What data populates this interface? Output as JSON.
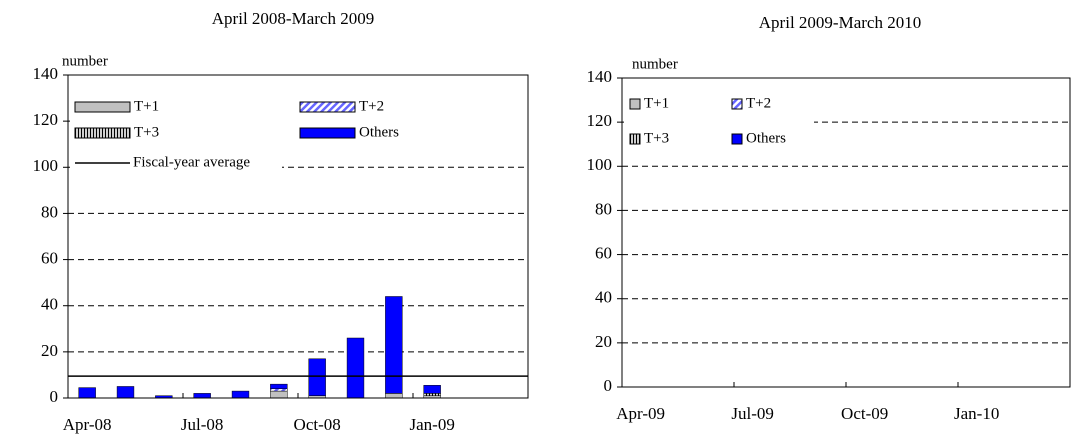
{
  "chart_data": [
    {
      "type": "bar",
      "stacked": true,
      "title": "April 2008-March 2009",
      "y_label": "number",
      "categories": [
        "Apr-08",
        null,
        null,
        "Jul-08",
        null,
        null,
        "Oct-08",
        null,
        null,
        "Jan-09",
        null,
        null
      ],
      "series": [
        {
          "name": "T+1",
          "color": "#c0c0c0",
          "fill_style": "solid",
          "values": [
            0,
            0,
            0,
            0,
            0,
            3,
            1,
            0,
            2,
            1,
            null,
            null
          ]
        },
        {
          "name": "T+2",
          "color": "#6666ff",
          "fill_style": "diagonal",
          "values": [
            0,
            0,
            0,
            0,
            0,
            1,
            0,
            0,
            0,
            0,
            null,
            null
          ]
        },
        {
          "name": "T+3",
          "color": "#808080",
          "fill_style": "vertical",
          "values": [
            0,
            0,
            0,
            0,
            0,
            0,
            0,
            0,
            0,
            1,
            null,
            null
          ]
        },
        {
          "name": "Others",
          "color": "#0000ff",
          "fill_style": "solid",
          "values": [
            4.5,
            5,
            1,
            2,
            3,
            2,
            16,
            26,
            42,
            3.5,
            null,
            null
          ]
        }
      ],
      "average": {
        "name": "Fiscal-year average",
        "value": 9.5
      },
      "ylim": [
        0,
        140
      ],
      "yticks": [
        0,
        20,
        40,
        60,
        80,
        100,
        120,
        140
      ],
      "grid": true
    },
    {
      "type": "bar",
      "stacked": true,
      "title": "April 2009-March 2010",
      "y_label": "number",
      "categories": [
        "Apr-09",
        null,
        null,
        "Jul-09",
        null,
        null,
        "Oct-09",
        null,
        null,
        "Jan-10",
        null,
        null
      ],
      "series": [
        {
          "name": "T+1",
          "color": "#c0c0c0",
          "fill_style": "solid",
          "values": [
            null,
            null,
            null,
            null,
            null,
            null,
            null,
            null,
            null,
            null,
            null,
            null
          ]
        },
        {
          "name": "T+2",
          "color": "#6666ff",
          "fill_style": "diagonal",
          "values": [
            null,
            null,
            null,
            null,
            null,
            null,
            null,
            null,
            null,
            null,
            null,
            null
          ]
        },
        {
          "name": "T+3",
          "color": "#808080",
          "fill_style": "vertical",
          "values": [
            null,
            null,
            null,
            null,
            null,
            null,
            null,
            null,
            null,
            null,
            null,
            null
          ]
        },
        {
          "name": "Others",
          "color": "#0000ff",
          "fill_style": "solid",
          "values": [
            null,
            null,
            null,
            null,
            null,
            null,
            null,
            null,
            null,
            null,
            null,
            null
          ]
        }
      ],
      "ylim": [
        0,
        140
      ],
      "yticks": [
        0,
        20,
        40,
        60,
        80,
        100,
        120,
        140
      ],
      "grid": true
    }
  ]
}
